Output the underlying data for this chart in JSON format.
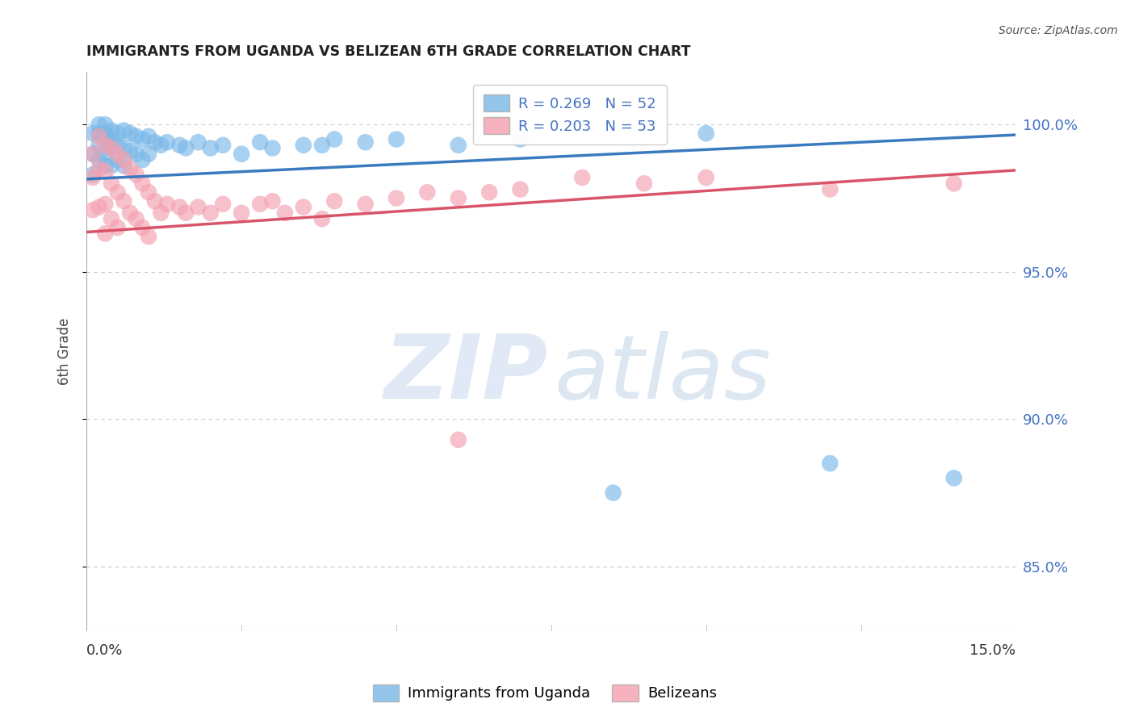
{
  "title": "IMMIGRANTS FROM UGANDA VS BELIZEAN 6TH GRADE CORRELATION CHART",
  "source": "Source: ZipAtlas.com",
  "ylabel": "6th Grade",
  "ylabel_ticks": [
    "85.0%",
    "90.0%",
    "95.0%",
    "100.0%"
  ],
  "ylabel_tick_vals": [
    0.85,
    0.9,
    0.95,
    1.0
  ],
  "xmin": 0.0,
  "xmax": 0.15,
  "ymin": 0.828,
  "ymax": 1.018,
  "blue_label": "Immigrants from Uganda",
  "pink_label": "Belizeans",
  "blue_R": 0.269,
  "blue_N": 52,
  "pink_R": 0.203,
  "pink_N": 53,
  "blue_color": "#7ab8e8",
  "pink_color": "#f4a0b0",
  "blue_line_color": "#3a7abf",
  "pink_line_color": "#d9546a",
  "background_color": "#ffffff",
  "grid_color": "#cccccc",
  "blue_scatter_x": [
    0.001,
    0.001,
    0.001,
    0.002,
    0.002,
    0.002,
    0.002,
    0.003,
    0.003,
    0.003,
    0.003,
    0.003,
    0.004,
    0.004,
    0.004,
    0.004,
    0.005,
    0.005,
    0.005,
    0.006,
    0.006,
    0.006,
    0.007,
    0.007,
    0.008,
    0.008,
    0.009,
    0.009,
    0.01,
    0.01,
    0.011,
    0.012,
    0.013,
    0.015,
    0.016,
    0.018,
    0.02,
    0.022,
    0.025,
    0.028,
    0.03,
    0.035,
    0.038,
    0.04,
    0.045,
    0.05,
    0.06,
    0.07,
    0.085,
    0.1,
    0.12,
    0.14
  ],
  "blue_scatter_y": [
    0.99,
    0.997,
    0.983,
    1.0,
    0.997,
    0.993,
    0.988,
    1.0,
    0.997,
    0.995,
    0.99,
    0.986,
    0.998,
    0.995,
    0.992,
    0.986,
    0.997,
    0.993,
    0.988,
    0.998,
    0.992,
    0.986,
    0.997,
    0.991,
    0.996,
    0.99,
    0.995,
    0.988,
    0.996,
    0.99,
    0.994,
    0.993,
    0.994,
    0.993,
    0.992,
    0.994,
    0.992,
    0.993,
    0.99,
    0.994,
    0.992,
    0.993,
    0.993,
    0.995,
    0.994,
    0.995,
    0.993,
    0.995,
    0.875,
    0.997,
    0.885,
    0.88
  ],
  "pink_scatter_x": [
    0.001,
    0.001,
    0.001,
    0.002,
    0.002,
    0.002,
    0.003,
    0.003,
    0.003,
    0.003,
    0.004,
    0.004,
    0.004,
    0.005,
    0.005,
    0.005,
    0.006,
    0.006,
    0.007,
    0.007,
    0.008,
    0.008,
    0.009,
    0.009,
    0.01,
    0.01,
    0.011,
    0.012,
    0.013,
    0.015,
    0.016,
    0.018,
    0.02,
    0.022,
    0.025,
    0.028,
    0.03,
    0.032,
    0.035,
    0.038,
    0.04,
    0.045,
    0.05,
    0.055,
    0.06,
    0.065,
    0.07,
    0.08,
    0.09,
    0.1,
    0.12,
    0.14,
    0.06
  ],
  "pink_scatter_y": [
    0.99,
    0.982,
    0.971,
    0.996,
    0.985,
    0.972,
    0.993,
    0.984,
    0.973,
    0.963,
    0.992,
    0.98,
    0.968,
    0.99,
    0.977,
    0.965,
    0.988,
    0.974,
    0.985,
    0.97,
    0.983,
    0.968,
    0.98,
    0.965,
    0.977,
    0.962,
    0.974,
    0.97,
    0.973,
    0.972,
    0.97,
    0.972,
    0.97,
    0.973,
    0.97,
    0.973,
    0.974,
    0.97,
    0.972,
    0.968,
    0.974,
    0.973,
    0.975,
    0.977,
    0.975,
    0.977,
    0.978,
    0.982,
    0.98,
    0.982,
    0.978,
    0.98,
    0.893
  ],
  "blue_line_x": [
    0.0,
    0.15
  ],
  "blue_line_y": [
    0.9815,
    0.9965
  ],
  "pink_line_x": [
    0.0,
    0.15
  ],
  "pink_line_y": [
    0.9635,
    0.9845
  ]
}
